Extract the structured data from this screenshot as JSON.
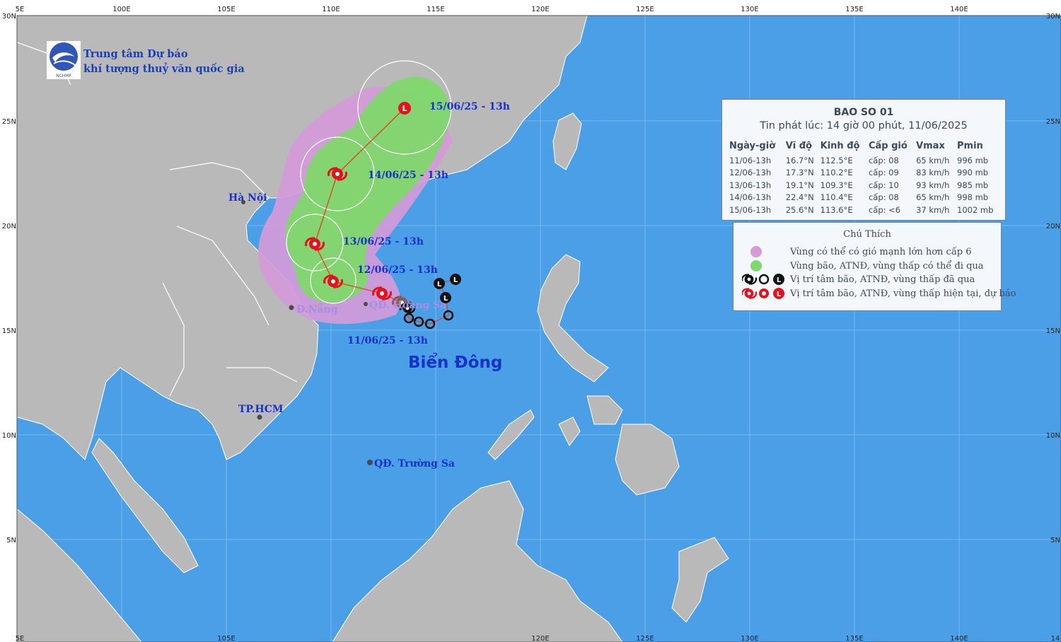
{
  "map": {
    "axis_top": [
      "100E",
      "105E",
      "110E",
      "115E",
      "120E",
      "125E",
      "130E",
      "135E",
      "140E"
    ],
    "axis_top_left": "5E",
    "axis_bottom": [
      "105E",
      "120E",
      "125E",
      "130E",
      "135E",
      "140E"
    ],
    "axis_bottom_left": "5E",
    "axis_bottom_right": "14",
    "axis_left": [
      "25N",
      "20N",
      "15N",
      "10N",
      "5N"
    ],
    "axis_left_top": "30N",
    "axis_right": [
      "25N",
      "20N",
      "15N",
      "10N",
      "5N"
    ],
    "axis_right_top": "30N",
    "colors": {
      "sea": "#4a9fe6",
      "land": "#b9b9b9",
      "cone_wind": "#d49ad9",
      "cone_storm": "#7fd86d",
      "track": "#e0401c",
      "storm_red": "#e8101c",
      "past_black": "#111111"
    }
  },
  "logo": {
    "line1": "Trung tâm Dự báo",
    "line2": "khí tượng thuỷ văn quốc gia",
    "abbr": "NCHMF",
    "icon": "nchmf-logo-icon"
  },
  "labels": {
    "sea_name": "Biển Đông",
    "hanoi": "Hà Nội",
    "danang": "Đ.Nẵng",
    "hcm": "TP.HCM",
    "hoangsa": "QĐ. Hoàng Sa",
    "truongsa": "QĐ. Trường Sa"
  },
  "forecast_labels": [
    {
      "text": "11/06/25 - 13h"
    },
    {
      "text": "12/06/25 - 13h"
    },
    {
      "text": "13/06/25 - 13h"
    },
    {
      "text": "14/06/25 - 13h"
    },
    {
      "text": "15/06/25 - 13h"
    }
  ],
  "info": {
    "title": "BAO SO 01",
    "issued": "Tin phát lúc: 14 giờ 00 phút, 11/06/2025",
    "headers": [
      "Ngày-giờ",
      "Vĩ độ",
      "Kinh độ",
      "Cấp gió",
      "Vmax",
      "Pmin"
    ],
    "rows": [
      [
        "11/06-13h",
        "16.7°N",
        "112.5°E",
        "cấp: 08",
        "65 km/h",
        "996 mb"
      ],
      [
        "12/06-13h",
        "17.3°N",
        "110.2°E",
        "cấp: 09",
        "83 km/h",
        "990 mb"
      ],
      [
        "13/06-13h",
        "19.1°N",
        "109.3°E",
        "cấp: 10",
        "93 km/h",
        "985 mb"
      ],
      [
        "14/06-13h",
        "22.4°N",
        "110.4°E",
        "cấp: 08",
        "65 km/h",
        "998 mb"
      ],
      [
        "15/06-13h",
        "25.6°N",
        "113.6°E",
        "cấp: <6",
        "37 km/h",
        "1002 mb"
      ]
    ]
  },
  "legend": {
    "title": "Chú Thích",
    "items": [
      {
        "text": "Vùng có thể có gió mạnh lớn hơn cấp 6",
        "symbol": "pink-dot-icon"
      },
      {
        "text": "Vùng bão, ATNĐ, vùng thấp có thể đi qua",
        "symbol": "green-dot-icon"
      },
      {
        "text": "Vị trí tâm bão, ATNĐ, vùng thấp đã qua",
        "symbol": "black-storm-symbols-icon"
      },
      {
        "text": "Vị trí tâm bão, ATNĐ, vùng thấp hiện tại, dự báo",
        "symbol": "red-storm-symbols-icon"
      }
    ]
  }
}
